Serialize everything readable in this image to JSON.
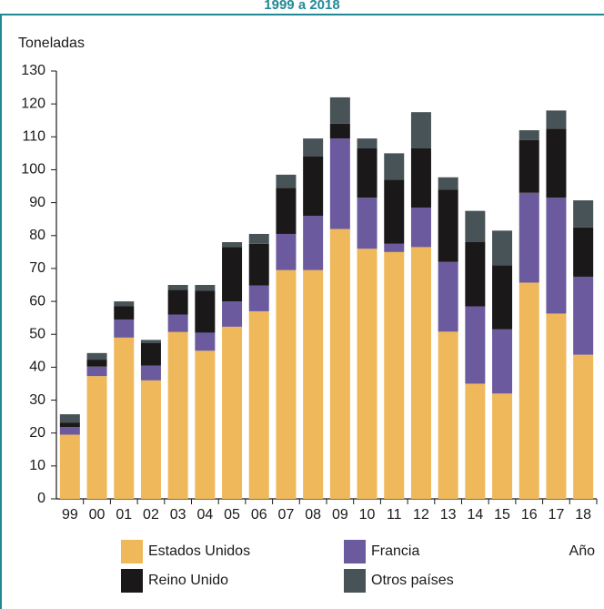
{
  "chart_data": {
    "type": "stacked_bar",
    "title": "1999 a 2018",
    "y_label": "Toneladas",
    "x_label": "Año",
    "categories": [
      "99",
      "00",
      "01",
      "02",
      "03",
      "04",
      "05",
      "06",
      "07",
      "08",
      "09",
      "10",
      "11",
      "12",
      "13",
      "14",
      "15",
      "16",
      "17",
      "18"
    ],
    "series": [
      {
        "name": "Estados Unidos",
        "color": "#efb85a",
        "values": [
          19.5,
          37.3,
          49,
          36,
          50.7,
          45,
          52.3,
          57,
          69.5,
          69.5,
          82,
          76,
          75,
          76.5,
          50.8,
          35,
          32,
          65.7,
          56.3,
          43.8
        ]
      },
      {
        "name": "Francia",
        "color": "#6b5a9e",
        "values": [
          2.3,
          2.9,
          5.5,
          4.5,
          5.3,
          5.5,
          7.7,
          7.8,
          11,
          16.5,
          27.5,
          15.5,
          2.5,
          12,
          21.2,
          23.5,
          19.5,
          27.3,
          35.2,
          23.7
        ]
      },
      {
        "name": "Reino Unido",
        "color": "#1b1819",
        "values": [
          1.4,
          2.1,
          4,
          6.8,
          7.5,
          12.8,
          16.5,
          12.7,
          14,
          18,
          4.5,
          15,
          19.5,
          18,
          22,
          19.5,
          19.5,
          16,
          21,
          15
        ]
      },
      {
        "name": "Otros países",
        "color": "#475357",
        "values": [
          2.5,
          2,
          1.5,
          1,
          1.5,
          1.7,
          1.5,
          3,
          4,
          5.5,
          8,
          3,
          8,
          11,
          3.7,
          9.5,
          10.5,
          3,
          5.5,
          8.2
        ]
      }
    ],
    "ylim": [
      0,
      130
    ],
    "yticks": [
      0,
      10,
      20,
      30,
      40,
      50,
      60,
      70,
      80,
      90,
      100,
      110,
      120,
      130
    ]
  }
}
